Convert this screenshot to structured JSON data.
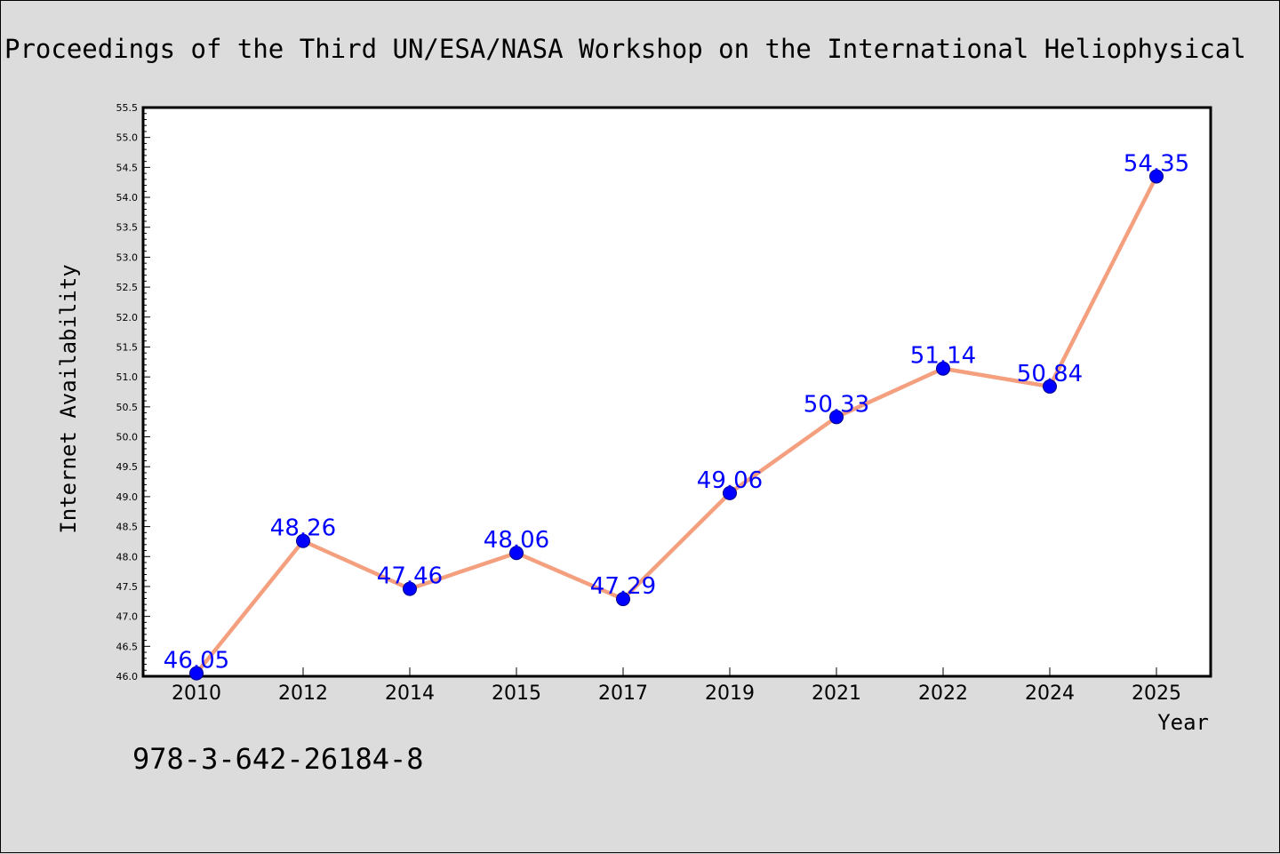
{
  "header": {
    "title": "Proceedings of the Third UN/ESA/NASA Workshop on the International Heliophysical"
  },
  "footer": {
    "isbn": "978-3-642-26184-8"
  },
  "colors": {
    "background": "#dcdcdc",
    "plot_area": "#ffffff",
    "line": "#f4a07f",
    "marker": "#0000ff",
    "data_label": "#0000ff"
  },
  "chart_data": {
    "type": "line",
    "title": "Proceedings of the Third UN/ESA/NASA Workshop on the International Heliophysical",
    "xlabel": "Year",
    "ylabel": "Internet Availability",
    "categories": [
      "2010",
      "2012",
      "2014",
      "2015",
      "2017",
      "2019",
      "2021",
      "2022",
      "2024",
      "2025"
    ],
    "values": [
      46.05,
      48.26,
      47.46,
      48.06,
      47.29,
      49.06,
      50.33,
      51.14,
      50.84,
      54.35
    ],
    "data_labels": [
      "46.05",
      "48.26",
      "47.46",
      "48.06",
      "47.29",
      "49.06",
      "50.33",
      "51.14",
      "50.84",
      "54.35"
    ],
    "ylim": [
      46.0,
      55.5
    ],
    "ytick_step": 0.5,
    "grid": false,
    "legend": "none",
    "marker": "circle"
  }
}
